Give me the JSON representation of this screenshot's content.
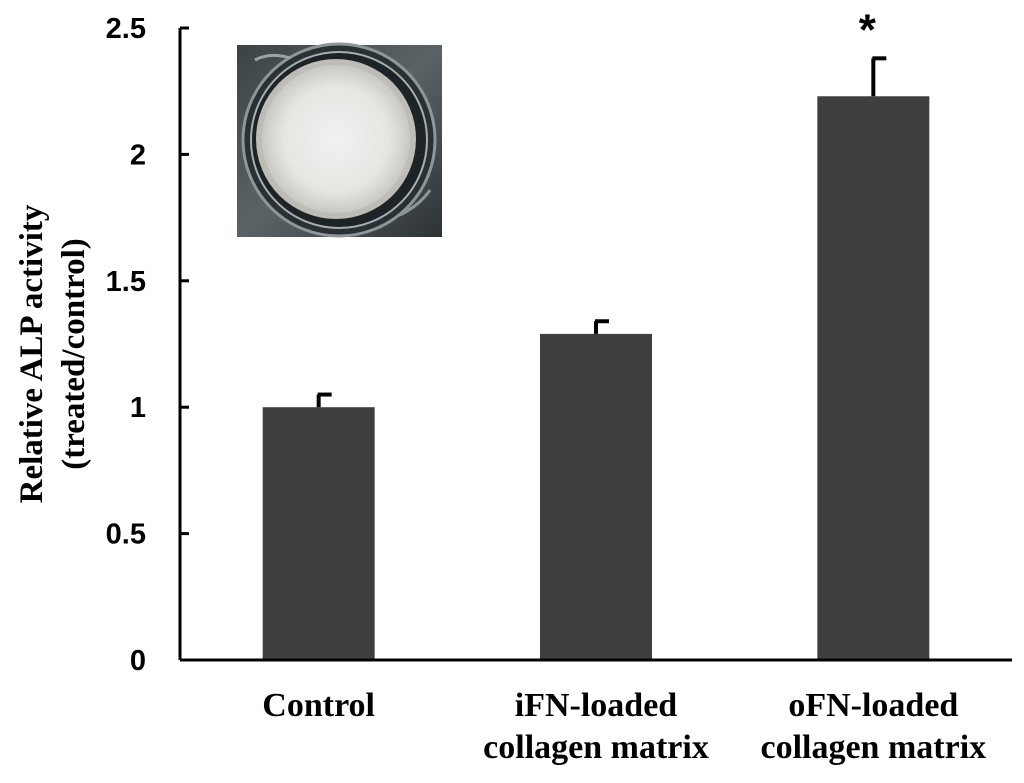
{
  "chart_data": {
    "type": "bar",
    "categories": [
      [
        "Control"
      ],
      [
        "iFN-loaded",
        "collagen matrix"
      ],
      [
        "oFN-loaded",
        "collagen matrix"
      ]
    ],
    "values": [
      1.0,
      1.29,
      2.23
    ],
    "errors": [
      0.05,
      0.05,
      0.15
    ],
    "annotations": [
      "",
      "",
      "*"
    ],
    "ylabel_lines": [
      "Relative ALP activity",
      "(treated/control)"
    ],
    "ylim": [
      0,
      2.5
    ],
    "yticks": [
      "0",
      "0.5",
      "1",
      "1.5",
      "2",
      "2.5"
    ],
    "ytick_values": [
      0,
      0.5,
      1,
      1.5,
      2,
      2.5
    ],
    "grid": false,
    "legend": "none",
    "bar_color": "#3f3f3f",
    "axis_color": "#000000",
    "inset_photo": "culture-well-photo"
  }
}
